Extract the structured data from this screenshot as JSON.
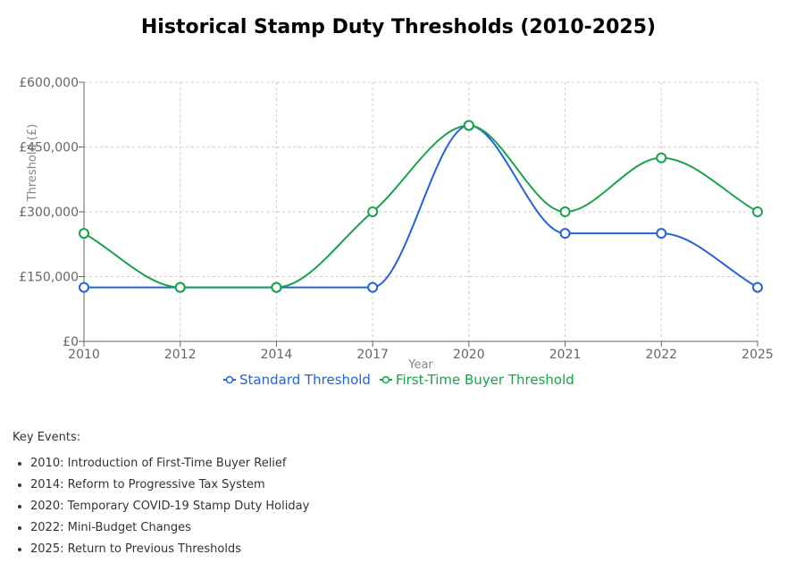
{
  "chart_data": {
    "type": "line",
    "title": "Historical Stamp Duty Thresholds (2010-2025)",
    "xlabel": "Year",
    "ylabel": "Threshold (£)",
    "categories": [
      "2010",
      "2012",
      "2014",
      "2017",
      "2020",
      "2021",
      "2022",
      "2025"
    ],
    "ylim": [
      0,
      600000
    ],
    "y_ticks": [
      0,
      150000,
      300000,
      450000,
      600000
    ],
    "y_tick_labels": [
      "£0",
      "£150,000",
      "£300,000",
      "£450,000",
      "£600,000"
    ],
    "grid": true,
    "legend_position": "bottom",
    "series": [
      {
        "name": "Standard Threshold",
        "color": "#2563d9",
        "values": [
          125000,
          125000,
          125000,
          125000,
          500000,
          250000,
          250000,
          125000
        ]
      },
      {
        "name": "First-Time Buyer Threshold",
        "color": "#16a34a",
        "values": [
          250000,
          125000,
          125000,
          300000,
          500000,
          300000,
          425000,
          300000
        ]
      }
    ]
  },
  "events": {
    "heading": "Key Events:",
    "items": [
      "2010: Introduction of First-Time Buyer Relief",
      "2014: Reform to Progressive Tax System",
      "2020: Temporary COVID-19 Stamp Duty Holiday",
      "2022: Mini-Budget Changes",
      "2025: Return to Previous Thresholds"
    ]
  }
}
